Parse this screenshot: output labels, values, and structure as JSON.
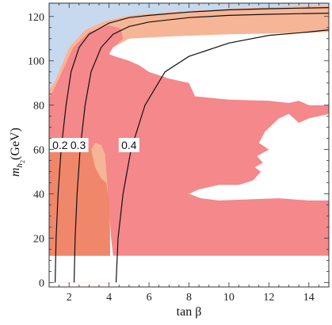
{
  "chart_data": {
    "type": "contour",
    "xlabel": "tan β",
    "ylabel_main": "m",
    "ylabel_sub": "h",
    "ylabel_subsub": "2",
    "ylabel_unit": "(GeV)",
    "xlim": [
      1.0,
      15.0
    ],
    "ylim": [
      -2,
      126
    ],
    "x_ticks": [
      2,
      4,
      6,
      8,
      10,
      12,
      14
    ],
    "y_ticks": [
      0,
      20,
      40,
      60,
      80,
      100,
      120
    ],
    "colors": {
      "blue": "#c6d9ef",
      "light_orange": "#f7b597",
      "red": "#f4888a",
      "dark_orange": "#f0876a",
      "contour": "#111111",
      "frame": "#333333"
    },
    "regions": {
      "blue": [
        [
          1.0,
          126
        ],
        [
          1.0,
          87
        ],
        [
          1.3,
          91
        ],
        [
          2.0,
          106
        ],
        [
          2.8,
          114
        ],
        [
          3.8,
          118
        ],
        [
          5.0,
          120.5
        ],
        [
          7.0,
          122
        ],
        [
          10.0,
          123.5
        ],
        [
          13.0,
          124.5
        ],
        [
          15.0,
          125
        ],
        [
          15.0,
          126
        ]
      ],
      "light_orange": [
        [
          1.0,
          87
        ],
        [
          1.3,
          91
        ],
        [
          2.0,
          106
        ],
        [
          2.8,
          114
        ],
        [
          3.8,
          118
        ],
        [
          5.0,
          120.5
        ],
        [
          7.0,
          122
        ],
        [
          10.0,
          123.5
        ],
        [
          13.0,
          124.5
        ],
        [
          15.0,
          125
        ],
        [
          15.0,
          113
        ],
        [
          13.0,
          112.5
        ],
        [
          10.0,
          112
        ],
        [
          7.0,
          111
        ],
        [
          5.0,
          110
        ],
        [
          4.0,
          105
        ],
        [
          3.5,
          100
        ],
        [
          3.3,
          98
        ],
        [
          3.1,
          94
        ],
        [
          2.9,
          90
        ],
        [
          2.7,
          80
        ],
        [
          2.65,
          70
        ],
        [
          3.0,
          64
        ],
        [
          3.6,
          62
        ],
        [
          3.95,
          56
        ],
        [
          4.05,
          40
        ],
        [
          4.05,
          0
        ],
        [
          1.0,
          0
        ]
      ],
      "red": [
        [
          1.0,
          12
        ],
        [
          1.0,
          83
        ],
        [
          1.5,
          92
        ],
        [
          2.2,
          106
        ],
        [
          3.0,
          113
        ],
        [
          4.0,
          116
        ],
        [
          4.6,
          114.5
        ],
        [
          4.7,
          110
        ],
        [
          4.2,
          106
        ],
        [
          4.0,
          103
        ],
        [
          4.3,
          102
        ],
        [
          5.0,
          100
        ],
        [
          5.5,
          98
        ],
        [
          6.0,
          95
        ],
        [
          7.0,
          92
        ],
        [
          8.0,
          90
        ],
        [
          8.3,
          84
        ],
        [
          10.0,
          82.5
        ],
        [
          12.0,
          82
        ],
        [
          13.0,
          81
        ],
        [
          13.5,
          82
        ],
        [
          14.0,
          80
        ],
        [
          15.0,
          80
        ],
        [
          15.0,
          76
        ],
        [
          14.0,
          74
        ],
        [
          13.5,
          72
        ],
        [
          13.0,
          76
        ],
        [
          12.5,
          74
        ],
        [
          11.8,
          68
        ],
        [
          11.5,
          63
        ],
        [
          12.0,
          60
        ],
        [
          11.4,
          57
        ],
        [
          11.7,
          54
        ],
        [
          11.3,
          52
        ],
        [
          11.6,
          50
        ],
        [
          11.2,
          46
        ],
        [
          10.5,
          44
        ],
        [
          9.5,
          44
        ],
        [
          8.5,
          42
        ],
        [
          8.0,
          40
        ],
        [
          8.6,
          38
        ],
        [
          9.5,
          37
        ],
        [
          11.0,
          37.5
        ],
        [
          12.5,
          38
        ],
        [
          14.0,
          37
        ],
        [
          15.0,
          37
        ],
        [
          15.0,
          12
        ],
        [
          4.2,
          12
        ],
        [
          4.1,
          20
        ],
        [
          3.95,
          40
        ],
        [
          3.8,
          58
        ],
        [
          3.6,
          62
        ],
        [
          3.3,
          63
        ],
        [
          3.1,
          60
        ],
        [
          2.95,
          50
        ],
        [
          2.85,
          35
        ],
        [
          2.75,
          12
        ]
      ],
      "dark_orange": [
        [
          1.0,
          12
        ],
        [
          1.0,
          60
        ],
        [
          1.3,
          62
        ],
        [
          2.0,
          64
        ],
        [
          2.7,
          65
        ],
        [
          3.1,
          60
        ],
        [
          3.3,
          52
        ],
        [
          3.6,
          47
        ],
        [
          3.85,
          45
        ],
        [
          4.0,
          38
        ],
        [
          4.05,
          20
        ],
        [
          4.05,
          0
        ],
        [
          1.0,
          0
        ]
      ],
      "white_strip": [
        [
          1.0,
          12
        ],
        [
          15.0,
          12
        ],
        [
          15.0,
          -2
        ],
        [
          4.05,
          -2
        ],
        [
          4.05,
          0
        ],
        [
          1.0,
          0
        ]
      ]
    },
    "contours": [
      {
        "name": "0.2",
        "points": [
          [
            1.3,
            0
          ],
          [
            1.35,
            20
          ],
          [
            1.45,
            40
          ],
          [
            1.6,
            60
          ],
          [
            1.85,
            80
          ],
          [
            2.1,
            95
          ],
          [
            2.5,
            106
          ],
          [
            3.0,
            112
          ],
          [
            4.0,
            117
          ],
          [
            5.0,
            119.5
          ],
          [
            6.0,
            120.5
          ],
          [
            8.0,
            122
          ],
          [
            10.0,
            123
          ],
          [
            12.0,
            123.5
          ],
          [
            15.0,
            124
          ]
        ],
        "label_at": [
          1.55,
          62
        ]
      },
      {
        "name": "0.3",
        "points": [
          [
            2.25,
            0
          ],
          [
            2.3,
            20
          ],
          [
            2.4,
            40
          ],
          [
            2.55,
            60
          ],
          [
            2.8,
            80
          ],
          [
            3.1,
            95
          ],
          [
            3.6,
            106
          ],
          [
            4.2,
            112
          ],
          [
            5.0,
            115.5
          ],
          [
            6.0,
            117.5
          ],
          [
            8.0,
            119.5
          ],
          [
            10.0,
            120.5
          ],
          [
            12.0,
            121
          ],
          [
            15.0,
            121.5
          ]
        ],
        "label_at": [
          2.45,
          62
        ]
      },
      {
        "name": "0.4",
        "points": [
          [
            4.35,
            0
          ],
          [
            4.45,
            20
          ],
          [
            4.7,
            40
          ],
          [
            5.1,
            60
          ],
          [
            5.8,
            80
          ],
          [
            6.8,
            95
          ],
          [
            8.0,
            102
          ],
          [
            10.0,
            108
          ],
          [
            12.0,
            111.5
          ],
          [
            14.0,
            113
          ],
          [
            15.0,
            114
          ]
        ],
        "label_at": [
          5.0,
          62
        ]
      }
    ]
  }
}
